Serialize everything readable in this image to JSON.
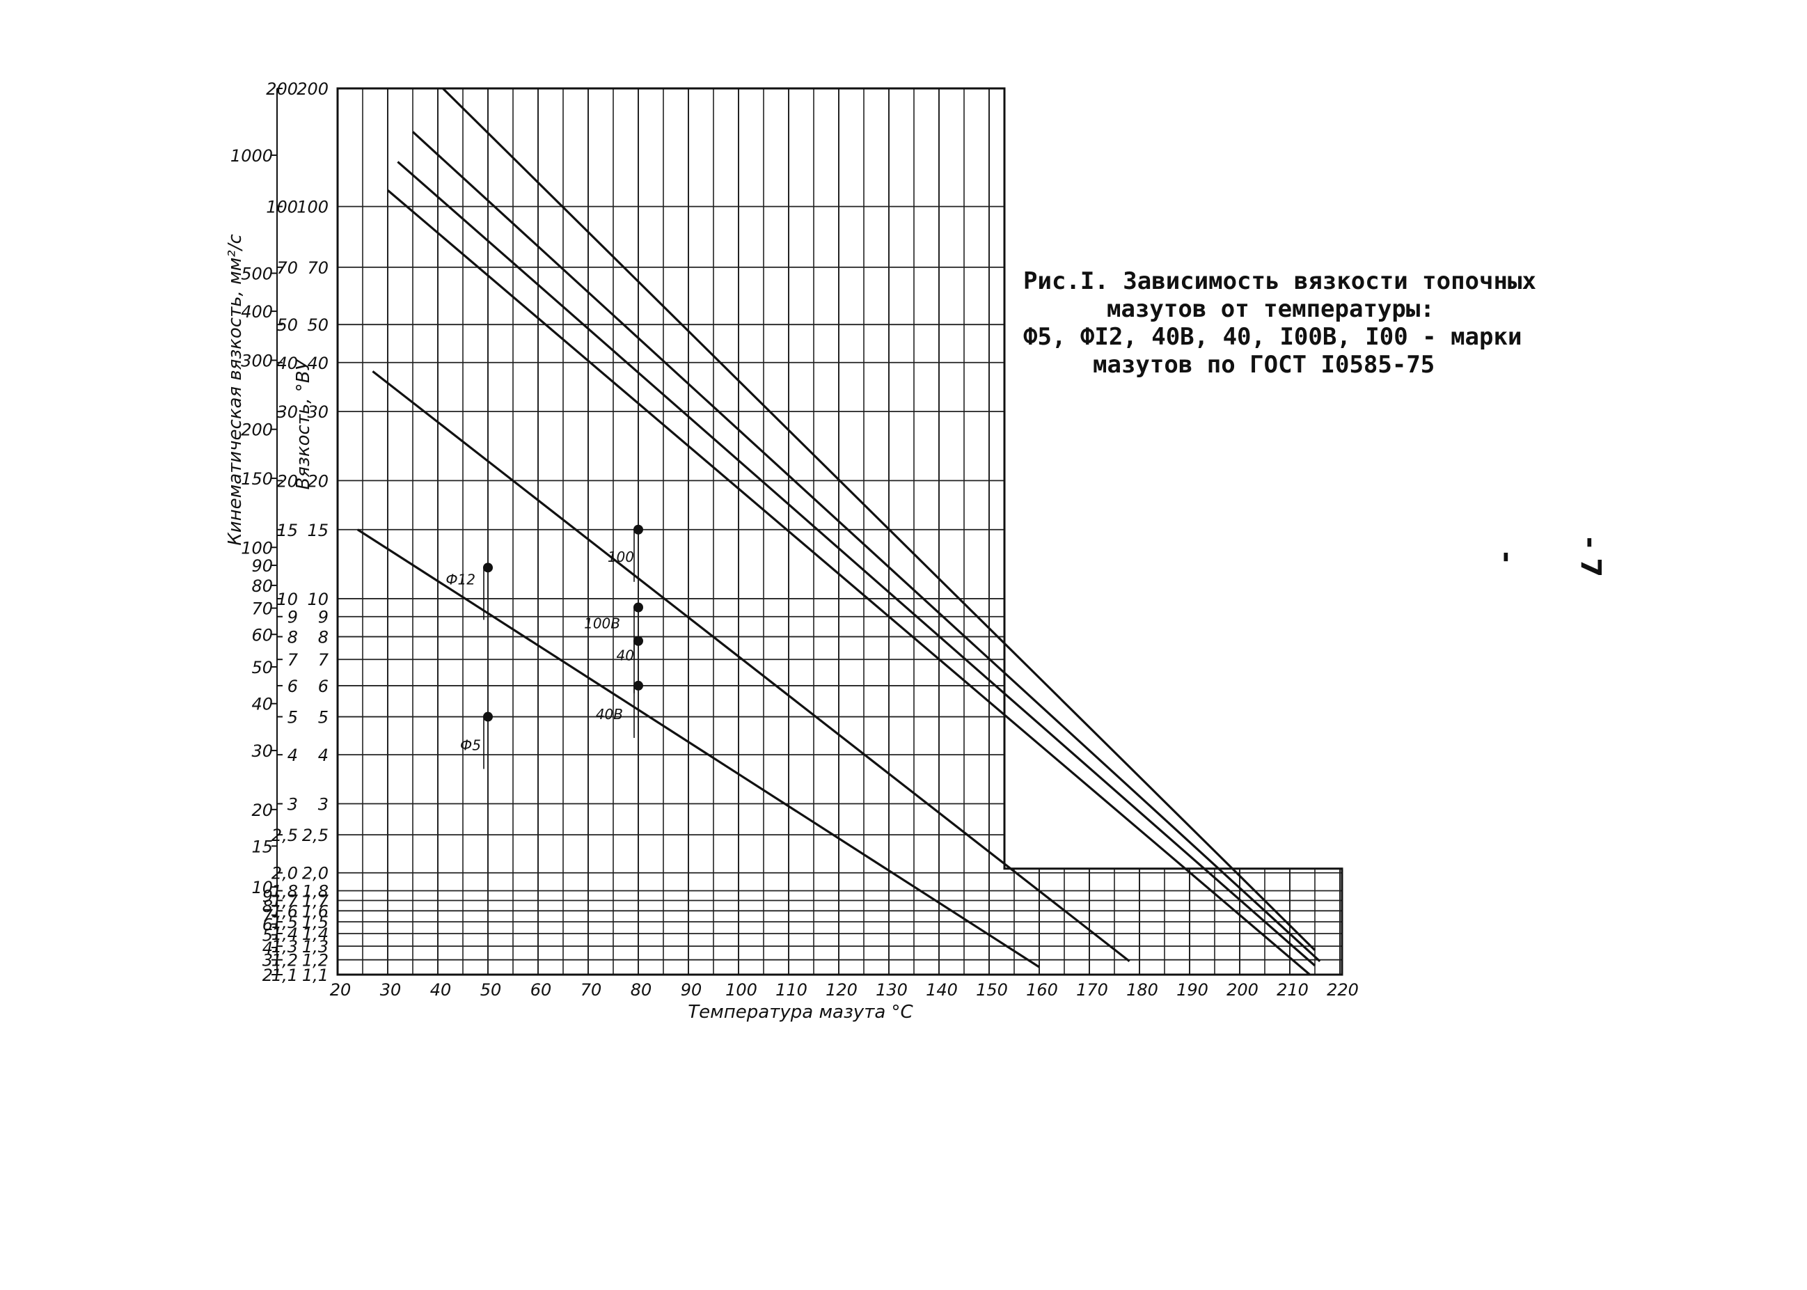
{
  "chart_data": {
    "type": "line",
    "xlabel": "Температура мазута °С",
    "ylabel_kinematic": "Кинематическая вязкость, мм²/с",
    "ylabel_conditional": "Вязкость, °ВУ",
    "x_ticks": [
      20,
      30,
      40,
      50,
      60,
      70,
      80,
      90,
      100,
      110,
      120,
      130,
      140,
      150,
      160,
      170,
      180,
      190,
      200,
      210,
      220
    ],
    "xlim": [
      20,
      222
    ],
    "y_scale": "double-log",
    "vu_ticks": [
      {
        "v": 200,
        "t": "200"
      },
      {
        "v": 100,
        "t": "100"
      },
      {
        "v": 70,
        "t": "70"
      },
      {
        "v": 50,
        "t": "50"
      },
      {
        "v": 40,
        "t": "40"
      },
      {
        "v": 30,
        "t": "30"
      },
      {
        "v": 20,
        "t": "20"
      },
      {
        "v": 15,
        "t": "15"
      },
      {
        "v": 10,
        "t": "10"
      },
      {
        "v": 9,
        "t": "9"
      },
      {
        "v": 8,
        "t": "8"
      },
      {
        "v": 7,
        "t": "7"
      },
      {
        "v": 6,
        "t": "6"
      },
      {
        "v": 5,
        "t": "5"
      },
      {
        "v": 4,
        "t": "4"
      },
      {
        "v": 3,
        "t": "3"
      },
      {
        "v": 2.5,
        "t": "2,5"
      },
      {
        "v": 2.0,
        "t": "2,0"
      },
      {
        "v": 1.8,
        "t": "1,8"
      },
      {
        "v": 1.7,
        "t": "1,7"
      },
      {
        "v": 1.6,
        "t": "1,6"
      },
      {
        "v": 1.5,
        "t": "1,5"
      },
      {
        "v": 1.4,
        "t": "1,4"
      },
      {
        "v": 1.3,
        "t": "1,3"
      },
      {
        "v": 1.2,
        "t": "1,2"
      },
      {
        "v": 1.1,
        "t": "1,1"
      }
    ],
    "kin_ticks": [
      1000,
      500,
      400,
      300,
      200,
      150,
      100,
      90,
      80,
      70,
      60,
      50,
      40,
      30,
      20,
      15,
      10,
      9,
      8,
      7,
      6,
      5,
      4,
      3,
      2
    ],
    "series": [
      {
        "name": "Ф5",
        "x": [
          24,
          160
        ],
        "vu": [
          15,
          1.15
        ]
      },
      {
        "name": "Ф12",
        "x": [
          27,
          178
        ],
        "vu": [
          38,
          1.19
        ]
      },
      {
        "name": "40В",
        "x": [
          30,
          214
        ],
        "vu": [
          110,
          1.1
        ]
      },
      {
        "name": "40",
        "x": [
          32,
          215
        ],
        "vu": [
          130,
          1.16
        ]
      },
      {
        "name": "100В",
        "x": [
          35,
          216
        ],
        "vu": [
          155,
          1.19
        ]
      },
      {
        "name": "100",
        "x": [
          41,
          215
        ],
        "vu": [
          200,
          1.27
        ]
      }
    ],
    "points": [
      {
        "label": "Ф12",
        "x": 50,
        "vu": 12
      },
      {
        "label": "Ф5",
        "x": 50,
        "vu": 5
      },
      {
        "label": "100",
        "x": 80,
        "vu": 15
      },
      {
        "label": "100В",
        "x": 80,
        "vu": 9.5
      },
      {
        "label": "40",
        "x": 80,
        "vu": 7.8
      },
      {
        "label": "40В",
        "x": 80,
        "vu": 6
      }
    ]
  },
  "caption": {
    "line1": "Рис.I. Зависимость вязкости топочных",
    "line2": "мазутов от температуры:",
    "line3": "Ф5, ФI2, 40В, 40, I00В, I00 - марки",
    "line4": "мазутов по ГОСТ I0585-75"
  },
  "page_number": "- 7 -"
}
